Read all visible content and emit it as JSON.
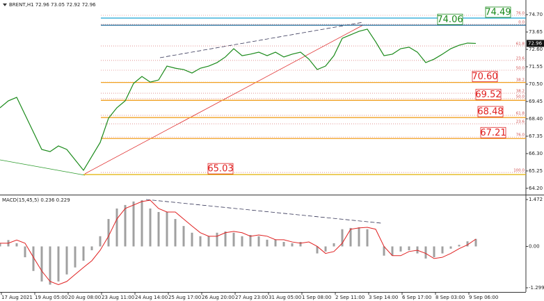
{
  "chart_data": [
    {
      "type": "line",
      "title": "BRENT,H1 72.96 73.05 72.92 72.96",
      "color": "#1a8a1a",
      "x": [
        0,
        1,
        2,
        3,
        4,
        5,
        6,
        7,
        8,
        9,
        10,
        11,
        12,
        13,
        14,
        15,
        16,
        17,
        18,
        19,
        20,
        21,
        22,
        23,
        24,
        25,
        26,
        27,
        28,
        29,
        30,
        31,
        32,
        33,
        34,
        35,
        36,
        37,
        38,
        39,
        40,
        41,
        42,
        43,
        44,
        45,
        46,
        47,
        48,
        49,
        50,
        51,
        52,
        53,
        54,
        55,
        56,
        57
      ],
      "values": [
        69.07,
        69.49,
        69.7,
        68.65,
        67.6,
        66.55,
        66.42,
        66.76,
        66.55,
        65.92,
        65.29,
        66.13,
        66.97,
        68.44,
        69.07,
        69.49,
        70.54,
        70.96,
        70.62,
        70.75,
        71.59,
        71.46,
        71.38,
        71.17,
        71.46,
        71.59,
        71.8,
        72.14,
        72.64,
        72.22,
        72.31,
        72.43,
        72.22,
        72.43,
        72.14,
        72.31,
        72.43,
        72.01,
        71.38,
        71.59,
        72.22,
        73.27,
        73.48,
        73.69,
        73.82,
        73.06,
        72.22,
        72.31,
        72.64,
        72.73,
        72.43,
        71.8,
        72.01,
        72.31,
        72.64,
        72.85,
        72.98,
        72.96
      ],
      "xlim": [
        0,
        63
      ],
      "ylim": [
        63.86,
        75.5
      ],
      "yticks": [
        {
          "value": 74.7,
          "label": "74.70"
        },
        73.65,
        {
          "value": 72.6,
          "label": "72.60"
        },
        71.55,
        {
          "value": 70.5,
          "label": "70.50"
        },
        69.45,
        {
          "value": 68.4,
          "label": "68.40"
        },
        67.35,
        {
          "value": 66.3,
          "label": "66.30"
        },
        65.25,
        {
          "value": 64.2,
          "label": "64.20"
        }
      ],
      "current_price": 72.96,
      "levels": [
        {
          "value": 74.49,
          "label": "74.49",
          "color": "#1aa3d4",
          "label_color": "#1a8a1a"
        },
        {
          "value": 74.06,
          "label": "74.06",
          "color": "#1a6a9a",
          "label_color": "#1a8a1a"
        },
        {
          "value": 70.6,
          "label": "70.60",
          "color": "#f0a020",
          "label_color": "#e02020"
        },
        {
          "value": 69.52,
          "label": "69.52",
          "color": "#f0a020",
          "label_color": "#e02020"
        },
        {
          "value": 68.48,
          "label": "68.48",
          "color": "#f0a020",
          "label_color": "#e02020"
        },
        {
          "value": 67.21,
          "label": "67.21",
          "color": "#f0a020",
          "label_color": "#e02020"
        },
        {
          "value": 65.03,
          "label": "65.03",
          "color": "#e0b000",
          "label_color": "#e02020"
        }
      ],
      "fib_color": "#d05050",
      "fib": [
        {
          "value": 74.66,
          "label": "76.0"
        },
        {
          "value": 74.11,
          "label": "0.0"
        },
        {
          "value": 72.81,
          "label": "61.8"
        },
        {
          "value": 71.93,
          "label": "23.6"
        },
        {
          "value": 71.34,
          "label": "50.0"
        },
        {
          "value": 70.62,
          "label": "38.2"
        },
        {
          "value": 69.95,
          "label": "38.2"
        },
        {
          "value": 69.62,
          "label": "50.0"
        },
        {
          "value": 68.61,
          "label": "61.8"
        },
        {
          "value": 68.1,
          "label": "23.6"
        },
        {
          "value": 67.3,
          "label": "76.0"
        },
        {
          "value": 65.16,
          "label": "100.0"
        }
      ]
    },
    {
      "type": "macd",
      "title": "MACD(15,45,5) 0.236 0.229",
      "x": [
        0,
        1,
        2,
        3,
        4,
        5,
        6,
        7,
        8,
        9,
        10,
        11,
        12,
        13,
        14,
        15,
        16,
        17,
        18,
        19,
        20,
        21,
        22,
        23,
        24,
        25,
        26,
        27,
        28,
        29,
        30,
        31,
        32,
        33,
        34,
        35,
        36,
        37,
        38,
        39,
        40,
        41,
        42,
        43,
        44,
        45,
        46,
        47,
        48,
        49,
        50,
        51,
        52,
        53,
        54,
        55,
        56,
        57
      ],
      "series": [
        {
          "color": "#a0a0a0",
          "kind": "bar",
          "values": [
            0.1,
            0.2,
            0.1,
            -0.34,
            -0.77,
            -1.1,
            -1.2,
            -1.1,
            -0.88,
            -0.66,
            -0.45,
            -0.12,
            0.32,
            0.86,
            1.19,
            1.3,
            1.41,
            1.45,
            1.19,
            1.08,
            1.08,
            0.86,
            0.64,
            0.43,
            0.32,
            0.32,
            0.43,
            0.47,
            0.43,
            0.32,
            0.36,
            0.32,
            0.21,
            0.21,
            0.14,
            0.1,
            0.14,
            0,
            -0.22,
            -0.16,
            0.1,
            0.54,
            0.58,
            0.6,
            0.54,
            0,
            -0.29,
            -0.29,
            -0.16,
            -0.12,
            -0.22,
            -0.38,
            -0.34,
            -0.22,
            -0.07,
            0.05,
            0.16,
            0.236
          ]
        },
        {
          "color": "#e02020",
          "kind": "line",
          "values": [
            0.1,
            0.1,
            0.2,
            0.1,
            -0.34,
            -0.77,
            -1.1,
            -1.2,
            -1.1,
            -0.88,
            -0.66,
            -0.45,
            -0.12,
            0.32,
            0.86,
            1.19,
            1.3,
            1.41,
            1.45,
            1.19,
            1.08,
            1.08,
            0.86,
            0.64,
            0.43,
            0.32,
            0.32,
            0.43,
            0.47,
            0.43,
            0.32,
            0.36,
            0.32,
            0.21,
            0.21,
            0.14,
            0.1,
            0.14,
            0,
            -0.22,
            -0.16,
            0.1,
            0.54,
            0.58,
            0.6,
            0.54,
            0,
            -0.29,
            -0.29,
            -0.16,
            -0.12,
            -0.22,
            -0.38,
            -0.34,
            -0.22,
            -0.07,
            0.05,
            0.229
          ]
        }
      ],
      "xlim": [
        0,
        63
      ],
      "ylim": [
        -1.43,
        1.56
      ],
      "yticks": [
        1.472,
        {
          "value": 0,
          "label": "0.00"
        },
        -1.299
      ],
      "xticks": [
        {
          "value": 0,
          "label": "17 Aug 2021"
        },
        {
          "value": 4,
          "label": "19 Aug 05:00"
        },
        {
          "value": 8,
          "label": "20 Aug 08:00"
        },
        {
          "value": 12,
          "label": "23 Aug 11:00"
        },
        {
          "value": 16,
          "label": "24 Aug 14:00"
        },
        {
          "value": 20,
          "label": "25 Aug 17:00"
        },
        {
          "value": 24,
          "label": "26 Aug 20:00"
        },
        {
          "value": 28,
          "label": "27 Aug 23:00"
        },
        {
          "value": 32,
          "label": "31 Aug 05:00"
        },
        {
          "value": 36,
          "label": "1 Sep 08:00"
        },
        {
          "value": 40,
          "label": "2 Sep 11:00"
        },
        {
          "value": 44,
          "label": "3 Sep 14:00"
        },
        {
          "value": 48,
          "label": "6 Sep 17:00"
        },
        {
          "value": 52,
          "label": "8 Sep 03:00"
        },
        {
          "value": 56,
          "label": "9 Sep 06:00"
        }
      ]
    }
  ]
}
